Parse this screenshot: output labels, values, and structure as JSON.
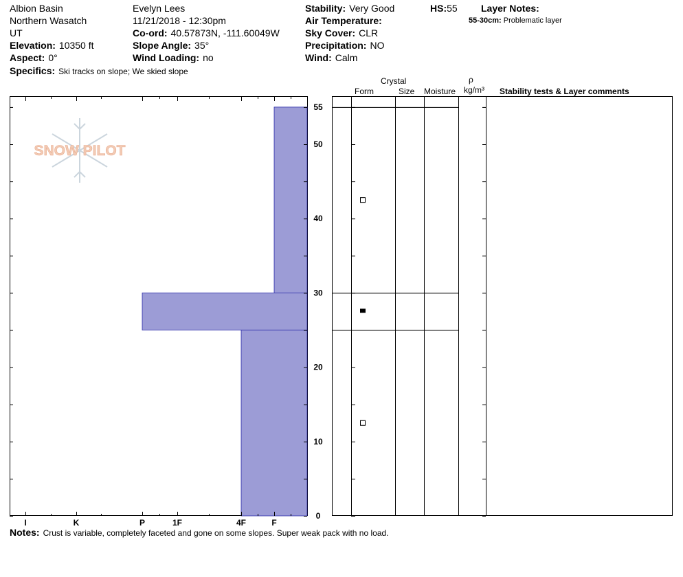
{
  "header": {
    "location": "Albion Basin",
    "range": "Northern Wasatch",
    "state": "UT",
    "elevation_label": "Elevation:",
    "elevation": "10350 ft",
    "aspect_label": "Aspect:",
    "aspect": "0°",
    "observer": "Evelyn Lees",
    "datetime": "11/21/2018 - 12:30pm",
    "coord_label": "Co-ord:",
    "coord": "40.57873N, -111.60049W",
    "slope_label": "Slope Angle:",
    "slope": "35°",
    "wind_loading_label": "Wind Loading:",
    "wind_loading": "no",
    "stability_label": "Stability:",
    "stability": "Very Good",
    "hs_label": "HS:",
    "hs": "55",
    "air_temp_label": "Air Temperature:",
    "air_temp": "",
    "sky_label": "Sky Cover:",
    "sky": "CLR",
    "precip_label": "Precipitation:",
    "precip": "NO",
    "wind_label": "Wind:",
    "wind": "Calm",
    "layer_notes_label": "Layer Notes:",
    "layer_note_range": "55-30cm:",
    "layer_note_text": "Problematic layer",
    "specifics_label": "Specifics:",
    "specifics": "Ski tracks on slope; We skied slope"
  },
  "columns": {
    "crystal": "Crystal",
    "form": "Form",
    "size": "Size",
    "moisture": "Moisture",
    "rho": "ρ",
    "density": "kg/m³",
    "comments": "Stability tests & Layer comments"
  },
  "notes_label": "Notes:",
  "notes": "Crust is variable, completely faceted and gone on some slopes.  Super weak pack with no load.",
  "watermark": "SNOW PILOT",
  "colors": {
    "hardness_fill": "#9c9cd6",
    "hardness_stroke": "#2a2aa8",
    "watermark": "#f2c9b2"
  },
  "chart_data": {
    "type": "bar",
    "orientation": "horizontal",
    "xlabel": "",
    "ylabel": "",
    "x_categories": [
      "I",
      "K",
      "P",
      "1F",
      "4F",
      "F"
    ],
    "y_ticks": [
      0,
      10,
      20,
      30,
      40,
      50,
      55
    ],
    "ylim": [
      0,
      55
    ],
    "layers": [
      {
        "bottom": 30,
        "top": 55,
        "hardness": "F",
        "grain_form": "square-open"
      },
      {
        "bottom": 25,
        "top": 30,
        "hardness": "P",
        "grain_form": "square-filled"
      },
      {
        "bottom": 0,
        "top": 25,
        "hardness": "4F",
        "grain_form": "square-open"
      }
    ]
  }
}
